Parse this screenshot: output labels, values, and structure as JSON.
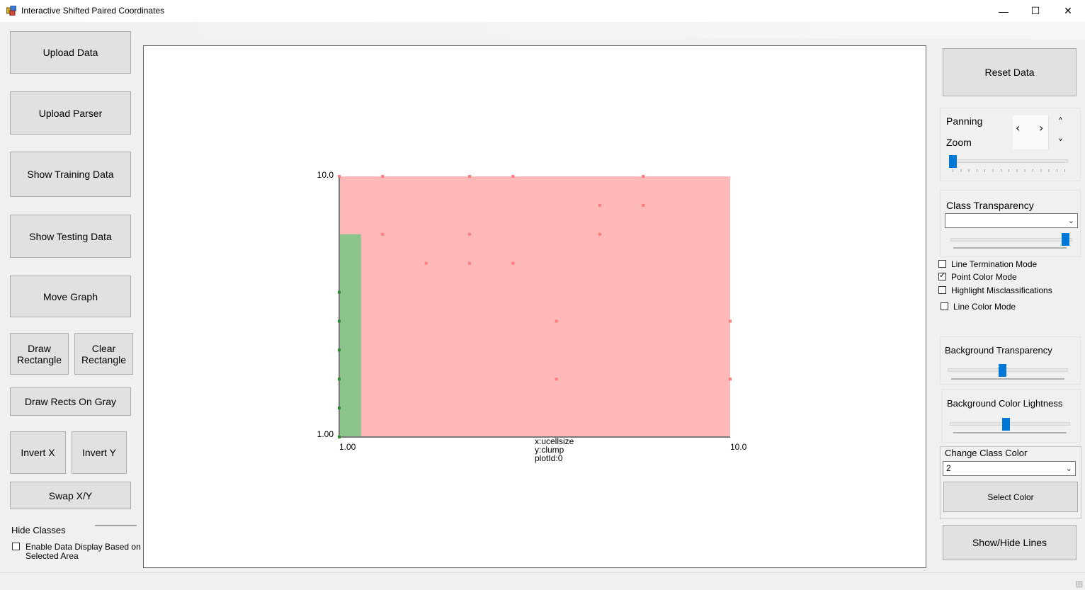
{
  "window": {
    "title": "Interactive Shifted Paired Coordinates",
    "minimize": "—",
    "maximize": "☐",
    "close": "✕"
  },
  "left_panel": {
    "upload_data": "Upload Data",
    "upload_parser": "Upload Parser",
    "show_training": "Show Training Data",
    "show_testing": "Show Testing Data",
    "move_graph": "Move Graph",
    "draw_rect_line1": "Draw",
    "draw_rect_line2": "Rectangle",
    "clear_rect_line1": "Clear",
    "clear_rect_line2": "Rectangle",
    "draw_rects_gray": "Draw Rects On Gray",
    "invert_x": "Invert X",
    "invert_y": "Invert Y",
    "swap_xy": "Swap X/Y",
    "hide_classes": "Hide Classes",
    "enable_display_line1": "Enable Data Display Based on",
    "enable_display_line2": "Selected Area",
    "enable_display_checked": false
  },
  "right_panel": {
    "reset_data": "Reset Data",
    "panning": "Panning",
    "zoom": "Zoom",
    "pan_left": "‹",
    "pan_right": "›",
    "pan_up": "˄",
    "pan_down": "˅",
    "class_transparency": "Class Transparency",
    "class_transparency_value": "",
    "line_termination_mode": "Line Termination Mode",
    "point_color_mode": "Point Color Mode",
    "highlight_misclassifications": "Highlight Misclassifications",
    "line_color_mode": "Line Color Mode",
    "checkboxes": {
      "line_termination_mode": false,
      "point_color_mode": true,
      "highlight_misclassifications": false,
      "line_color_mode": false
    },
    "background_transparency": "Background Transparency",
    "background_color_lightness": "Background Color Lightness",
    "change_class_color": "Change Class Color",
    "class_select_value": "2",
    "select_color": "Select Color",
    "show_hide_lines": "Show/Hide Lines",
    "sliders": {
      "zoom": 0.0,
      "class_transparency": 1.0,
      "background_transparency": 0.45,
      "background_color_lightness": 0.43
    }
  },
  "colors": {
    "class_red_region": "#ffb8b8",
    "class_green_region": "#8cc58c",
    "red_point": "#ff7c7c",
    "green_point": "#2e8b2e",
    "slider_thumb": "#0078d7"
  },
  "chart_data": {
    "type": "scatter",
    "xlabel": "x:ucellsize",
    "ylabel": "y:clump",
    "plot_id_label": "plotId:0",
    "x_tick_labels": [
      "1.00",
      "10.0"
    ],
    "y_tick_labels": [
      "1.00",
      "10.0"
    ],
    "xlim": [
      1,
      10
    ],
    "ylim": [
      1,
      10
    ],
    "regions": [
      {
        "class": "red",
        "x": [
          1,
          10
        ],
        "y": [
          1,
          10
        ]
      },
      {
        "class": "green",
        "x": [
          1,
          1.5
        ],
        "y": [
          1,
          8
        ]
      }
    ],
    "series": [
      {
        "class": "red",
        "points": [
          [
            1,
            10
          ],
          [
            2,
            10
          ],
          [
            4,
            10
          ],
          [
            5,
            10
          ],
          [
            8,
            10
          ],
          [
            7,
            9
          ],
          [
            8,
            9
          ],
          [
            2,
            8
          ],
          [
            4,
            8
          ],
          [
            7,
            8
          ],
          [
            3,
            7
          ],
          [
            4,
            7
          ],
          [
            5,
            7
          ],
          [
            6,
            5
          ],
          [
            10,
            5
          ],
          [
            6,
            3
          ],
          [
            10,
            3
          ]
        ]
      },
      {
        "class": "green",
        "points": [
          [
            1,
            1
          ],
          [
            1,
            2
          ],
          [
            1,
            3
          ],
          [
            1,
            4
          ],
          [
            1,
            5
          ],
          [
            1,
            6
          ]
        ]
      }
    ]
  }
}
